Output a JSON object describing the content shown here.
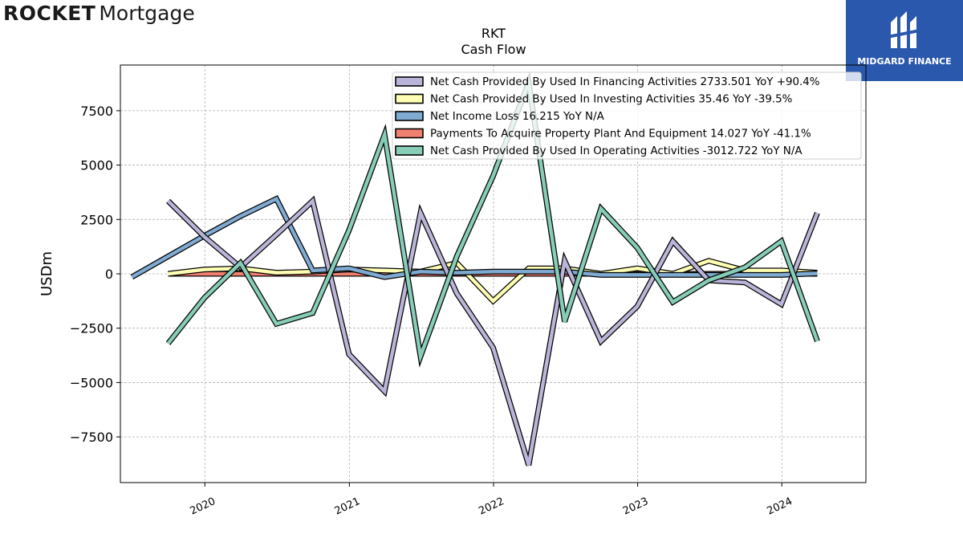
{
  "header": {
    "left_logo": {
      "word1": "ROCKET",
      "word2": "Mortgage"
    },
    "right_logo": {
      "brand": "MIDGARD FINANCE",
      "icon": "midgard-emblem-icon",
      "bg": "#2a58ad"
    }
  },
  "chart_data": {
    "type": "line",
    "title": "RKT",
    "subtitle": "Cash Flow",
    "ylabel": "USDm",
    "xlabel": "",
    "ylim": [
      -9600,
      9600
    ],
    "xlim": [
      "2019-06-01",
      "2024-08-01"
    ],
    "yticks": [
      -7500,
      -5000,
      -2500,
      0,
      2500,
      5000,
      7500
    ],
    "yticklabels": [
      "−7500",
      "−5000",
      "−2500",
      "0",
      "2500",
      "5000",
      "7500"
    ],
    "xticks": [
      "2020-01-01",
      "2021-01-01",
      "2022-01-01",
      "2023-01-01",
      "2024-01-01"
    ],
    "xticklabels": [
      "2020",
      "2021",
      "2022",
      "2023",
      "2024"
    ],
    "grid": true,
    "legend_position": "top-right",
    "series": [
      {
        "name": "Net Cash Provided By Used In Financing Activities  2733.501 YoY +90.4%",
        "color": "#bab4d8",
        "x": [
          "2019-09-30",
          "2019-12-31",
          "2020-03-31",
          "2020-06-30",
          "2020-09-30",
          "2020-12-31",
          "2021-03-31",
          "2021-06-30",
          "2021-09-30",
          "2021-12-31",
          "2022-03-31",
          "2022-06-30",
          "2022-09-30",
          "2022-12-31",
          "2023-03-31",
          "2023-06-30",
          "2023-09-30",
          "2023-12-31",
          "2024-03-31"
        ],
        "y": [
          3350,
          1700,
          300,
          1800,
          3350,
          -3700,
          -5400,
          2800,
          -900,
          -3400,
          -8800,
          600,
          -3100,
          -1500,
          1500,
          -300,
          -400,
          -1400,
          2800
        ]
      },
      {
        "name": "Net Cash Provided By Used In Investing Activities  35.46 YoY -39.5%",
        "color": "#ffffb3",
        "x": [
          "2019-09-30",
          "2019-12-31",
          "2020-03-31",
          "2020-06-30",
          "2020-09-30",
          "2020-12-31",
          "2021-03-31",
          "2021-06-30",
          "2021-09-30",
          "2021-12-31",
          "2022-03-31",
          "2022-06-30",
          "2022-09-30",
          "2022-12-31",
          "2023-03-31",
          "2023-06-30",
          "2023-09-30",
          "2023-12-31",
          "2024-03-31"
        ],
        "y": [
          0,
          200,
          250,
          50,
          100,
          200,
          150,
          100,
          500,
          -1250,
          250,
          250,
          0,
          250,
          0,
          600,
          150,
          150,
          50
        ]
      },
      {
        "name": "Net Income Loss  16.215 YoY N/A",
        "color": "#7faad1",
        "x": [
          "2019-06-30",
          "2019-09-30",
          "2019-12-31",
          "2020-03-31",
          "2020-06-30",
          "2020-09-30",
          "2020-12-31",
          "2021-03-31",
          "2021-06-30",
          "2021-09-30",
          "2021-12-31",
          "2022-03-31",
          "2022-06-30",
          "2022-09-30",
          "2022-12-31",
          "2023-03-31",
          "2023-06-30",
          "2023-09-30",
          "2023-12-31",
          "2024-03-31"
        ],
        "y": [
          -150,
          800,
          1750,
          2650,
          3450,
          150,
          250,
          -150,
          100,
          50,
          100,
          100,
          100,
          -50,
          -50,
          -50,
          -50,
          -50,
          -50,
          20
        ]
      },
      {
        "name": "Payments To Acquire Property Plant And Equipment  14.027 YoY -41.1%",
        "color": "#f08070",
        "x": [
          "2019-09-30",
          "2019-12-31",
          "2020-03-31",
          "2020-06-30",
          "2020-09-30",
          "2020-12-31",
          "2021-03-31",
          "2021-06-30",
          "2021-09-30",
          "2021-12-31",
          "2022-03-31",
          "2022-06-30",
          "2022-09-30",
          "2022-12-31",
          "2023-03-31",
          "2023-06-30",
          "2023-09-30",
          "2023-12-31",
          "2024-03-31"
        ],
        "y": [
          0,
          0,
          0,
          0,
          0,
          0,
          0,
          0,
          0,
          0,
          0,
          0,
          0,
          0,
          0,
          0,
          0,
          0,
          0
        ]
      },
      {
        "name": "Net Cash Provided By Used In Operating Activities  -3012.722 YoY N/A",
        "color": "#86cdb8",
        "x": [
          "2019-09-30",
          "2019-12-31",
          "2020-03-31",
          "2020-06-30",
          "2020-09-30",
          "2020-12-31",
          "2021-03-31",
          "2021-06-30",
          "2021-09-30",
          "2021-12-31",
          "2022-03-31",
          "2022-06-30",
          "2022-09-30",
          "2022-12-31",
          "2023-03-31",
          "2023-06-30",
          "2023-09-30",
          "2023-12-31",
          "2024-03-31"
        ],
        "y": [
          -3200,
          -1100,
          500,
          -2300,
          -1800,
          2000,
          6400,
          -3800,
          800,
          4500,
          8800,
          -2200,
          3000,
          1200,
          -1300,
          -300,
          300,
          1500,
          -3100
        ]
      }
    ]
  }
}
